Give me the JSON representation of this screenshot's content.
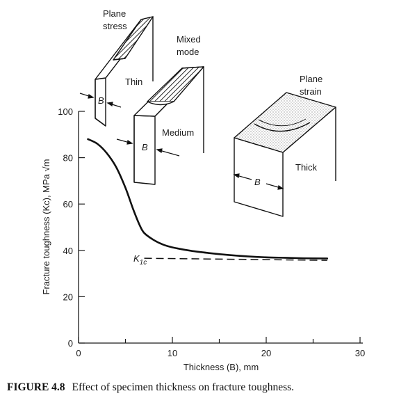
{
  "chart_data": {
    "type": "line",
    "title": "",
    "xlabel": "Thickness (B), mm",
    "ylabel": "Fracture toughness (Kc), MPa √m",
    "xlim": [
      0,
      30
    ],
    "ylim": [
      0,
      100
    ],
    "x_ticks": [
      "0",
      "10",
      "20",
      "30"
    ],
    "y_ticks": [
      "0",
      "20",
      "40",
      "60",
      "80",
      "100"
    ],
    "grid": false,
    "series": [
      {
        "name": "",
        "style": "solid",
        "x": [
          1,
          2,
          3,
          4,
          5,
          5.8,
          6.5,
          7,
          8,
          9,
          10,
          12,
          14,
          16,
          18,
          20,
          22,
          24,
          26.5
        ],
        "y": [
          88,
          86,
          82,
          76,
          67,
          58,
          51,
          47.5,
          44.5,
          42.5,
          41.3,
          39.8,
          38.8,
          38,
          37.4,
          37,
          36.8,
          36.6,
          36.5
        ]
      },
      {
        "name": "K1c",
        "style": "dashed",
        "x": [
          7,
          26.5
        ],
        "y": [
          36.6,
          35.7
        ]
      }
    ],
    "annotations": {
      "k1c_label": "K",
      "k1c_sub": "1c",
      "thin": {
        "mode": "Plane stress",
        "size": "Thin",
        "dim": "B"
      },
      "medium": {
        "mode": "Mixed mode",
        "size": "Medium",
        "dim": "B"
      },
      "thick": {
        "mode": "Plane strain",
        "size": "Thick",
        "dim": "B"
      }
    }
  },
  "caption": {
    "figure": "FIGURE 4.8",
    "text": "Effect of specimen thickness on fracture toughness."
  }
}
